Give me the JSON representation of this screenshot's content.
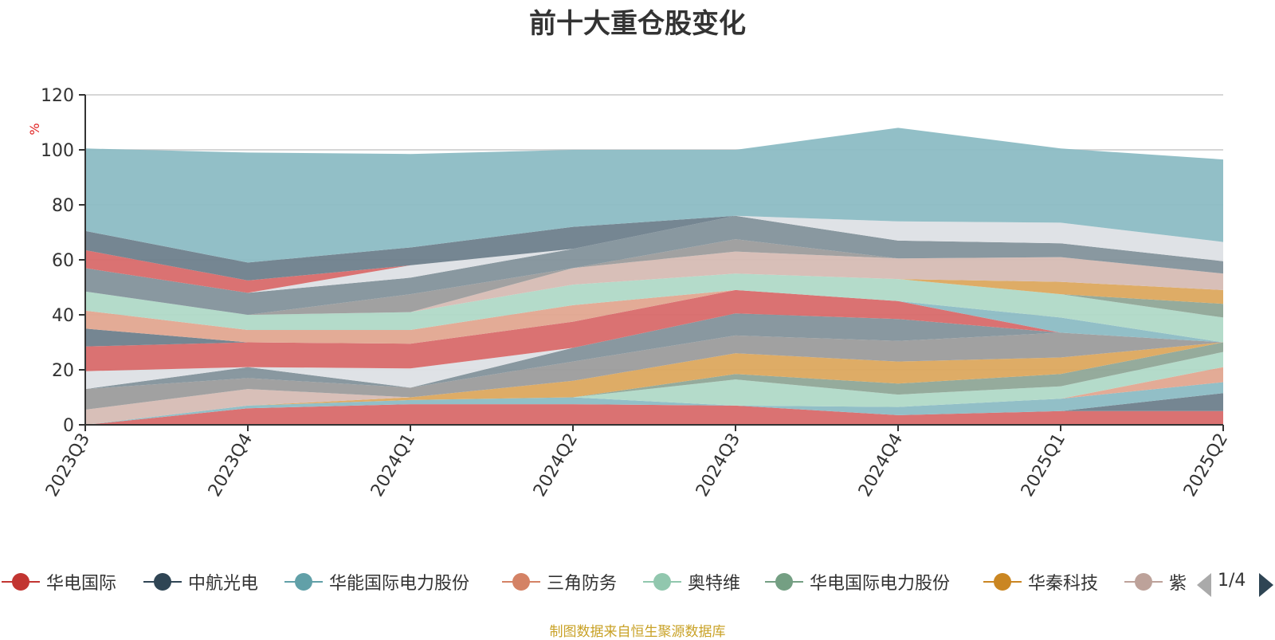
{
  "chart_data": {
    "type": "area",
    "title": "前十大重仓股变化",
    "ylabel": "%",
    "ylim": [
      0,
      120
    ],
    "yticks": [
      0,
      20,
      40,
      60,
      80,
      100,
      120
    ],
    "grid": true,
    "stacked": true,
    "legend_position": "bottom",
    "categories": [
      "2023Q3",
      "2023Q4",
      "2024Q1",
      "2024Q2",
      "2024Q3",
      "2024Q4",
      "2025Q1",
      "2025Q2"
    ],
    "series": [
      {
        "name": "华电国际",
        "color": "#d86a6a",
        "values": [
          0,
          6,
          7.5,
          7.5,
          7,
          3.5,
          5,
          5
        ]
      },
      {
        "name": "中航光电",
        "color": "#6e7f8c",
        "values": [
          0,
          0,
          0,
          0,
          0,
          0,
          0,
          6.5
        ]
      },
      {
        "name": "华能国际电力股份",
        "color": "#8cbcc4",
        "values": [
          0,
          1,
          1.5,
          2.5,
          0,
          3,
          4.5,
          4
        ]
      },
      {
        "name": "三角防务",
        "color": "#e2a690",
        "values": [
          0,
          0,
          0,
          0,
          0,
          0,
          0,
          5.5
        ]
      },
      {
        "name": "奥特维",
        "color": "#b0d9c7",
        "values": [
          0,
          0,
          0,
          0,
          9.5,
          4.5,
          4.5,
          5.5
        ]
      },
      {
        "name": "华电国际电力股份",
        "color": "#8fa797",
        "values": [
          0,
          0,
          0,
          0,
          2,
          4,
          4.5,
          3.5
        ]
      },
      {
        "name": "华秦科技",
        "color": "#dca85e",
        "values": [
          0,
          0,
          1,
          6,
          7.5,
          8,
          6,
          0
        ]
      },
      {
        "name": "紫",
        "color": "#d6bcb4",
        "values": [
          5.5,
          6,
          0,
          0,
          0,
          0,
          0,
          0
        ]
      },
      {
        "name": "",
        "color": "#9c9c9c",
        "values": [
          7.5,
          4,
          3.5,
          7,
          6.5,
          7.5,
          9,
          0
        ]
      },
      {
        "name": "",
        "color": "#83929b",
        "values": [
          0,
          4,
          0,
          5,
          8,
          8,
          0,
          0
        ]
      },
      {
        "name": "",
        "color": "#dde0e5",
        "values": [
          6.5,
          0,
          7,
          0,
          0,
          0,
          0,
          0
        ]
      },
      {
        "name": "",
        "color": "#d86a6a",
        "values": [
          9,
          9,
          9,
          9.5,
          8.5,
          6.5,
          0,
          0
        ]
      },
      {
        "name": "",
        "color": "#6e7f8c",
        "values": [
          6.5,
          0,
          0,
          0,
          0,
          0,
          0,
          0
        ]
      },
      {
        "name": "",
        "color": "#e2a690",
        "values": [
          6.5,
          4.5,
          5,
          6,
          0,
          0,
          0,
          0
        ]
      },
      {
        "name": "",
        "color": "#8cbcc4",
        "values": [
          0,
          0,
          0,
          0,
          0,
          0,
          5.5,
          0
        ]
      },
      {
        "name": "",
        "color": "#b0d9c7",
        "values": [
          7,
          5.5,
          6.5,
          7.5,
          6,
          8,
          8.5,
          9
        ]
      },
      {
        "name": "",
        "color": "#8fa797",
        "values": [
          0,
          0,
          0,
          0,
          0,
          0,
          0,
          5
        ]
      },
      {
        "name": "",
        "color": "#dca85e",
        "values": [
          0,
          0,
          0,
          0,
          0,
          0,
          4.5,
          5
        ]
      },
      {
        "name": "",
        "color": "#d6bcb4",
        "values": [
          0,
          0,
          0,
          6,
          8,
          7.5,
          9,
          6
        ]
      },
      {
        "name": "",
        "color": "#9c9c9c",
        "values": [
          0,
          0,
          6.5,
          0,
          4.5,
          0,
          0,
          0
        ]
      },
      {
        "name": "",
        "color": "#83929b",
        "values": [
          8.5,
          8,
          6,
          7,
          8.5,
          6.5,
          5,
          4.5
        ]
      },
      {
        "name": "",
        "color": "#dde0e5",
        "values": [
          0,
          0,
          4.5,
          0,
          0,
          7,
          7.5,
          7
        ]
      },
      {
        "name": "",
        "color": "#d86a6a",
        "values": [
          6.5,
          4.5,
          0,
          0,
          0,
          0,
          0,
          0
        ]
      },
      {
        "name": "",
        "color": "#6e7f8c",
        "values": [
          7,
          6.5,
          6.5,
          8,
          0,
          0,
          0,
          0
        ]
      },
      {
        "name": "",
        "color": "#8cbcc4",
        "values": [
          30,
          40,
          34,
          28,
          24,
          34,
          27,
          30
        ]
      }
    ]
  },
  "legend": {
    "items": [
      {
        "name": "华电国际",
        "color": "#c23531"
      },
      {
        "name": "中航光电",
        "color": "#2f4554"
      },
      {
        "name": "华能国际电力股份",
        "color": "#61a0a8"
      },
      {
        "name": "三角防务",
        "color": "#d48265"
      },
      {
        "name": "奥特维",
        "color": "#91c7ae"
      },
      {
        "name": "华电国际电力股份",
        "color": "#749f83"
      },
      {
        "name": "华秦科技",
        "color": "#ca8622"
      },
      {
        "name": "紫",
        "color": "#bda29a"
      }
    ],
    "page_text": "1/4",
    "prev_icon": "triangle-left-icon",
    "next_icon": "triangle-right-icon"
  },
  "source_note": "制图数据来自恒生聚源数据库"
}
